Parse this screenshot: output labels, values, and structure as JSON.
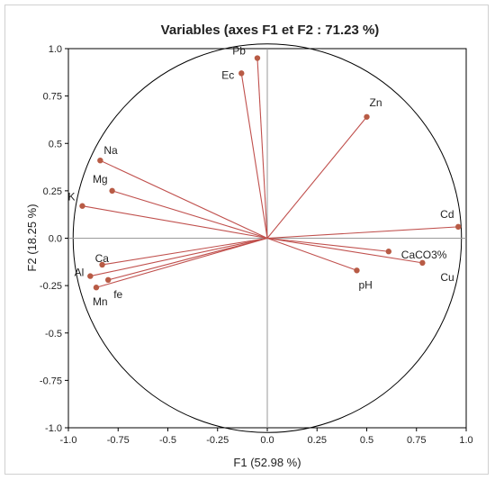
{
  "chart_data": {
    "type": "scatter",
    "subtype": "correlation-circle",
    "title": "Variables (axes F1 et F2 : 71.23 %)",
    "xlabel": "F1 (52.98 %)",
    "ylabel": "F2 (18.25 %)",
    "xlim": [
      -1.0,
      1.0
    ],
    "ylim": [
      -1.0,
      1.0
    ],
    "x_ticks": [
      "-1.0",
      "-0.75",
      "-0.5",
      "-0.25",
      "0.0",
      "0.25",
      "0.5",
      "0.75",
      "1.0"
    ],
    "y_ticks": [
      "1.0",
      "0.75",
      "0.5",
      "0.25",
      "0.0",
      "-0.25",
      "-0.5",
      "-0.75",
      "-1.0"
    ],
    "grid": false,
    "unit_circle": true,
    "colors": {
      "vector": "#c0504d",
      "point": "#b85b45",
      "axis": "#000000"
    },
    "points": [
      {
        "label": "Pb",
        "x": -0.05,
        "y": 0.95
      },
      {
        "label": "Ec",
        "x": -0.13,
        "y": 0.87
      },
      {
        "label": "Zn",
        "x": 0.5,
        "y": 0.64
      },
      {
        "label": "Na",
        "x": -0.84,
        "y": 0.41
      },
      {
        "label": "Mg",
        "x": -0.78,
        "y": 0.25
      },
      {
        "label": "K",
        "x": -0.93,
        "y": 0.17
      },
      {
        "label": "Cd",
        "x": 0.96,
        "y": 0.06
      },
      {
        "label": "CaCO3%",
        "x": 0.61,
        "y": -0.07
      },
      {
        "label": "Cu",
        "x": 0.78,
        "y": -0.13
      },
      {
        "label": "pH",
        "x": 0.45,
        "y": -0.17
      },
      {
        "label": "Ca",
        "x": -0.83,
        "y": -0.14
      },
      {
        "label": "Al",
        "x": -0.89,
        "y": -0.2
      },
      {
        "label": "fe",
        "x": -0.8,
        "y": -0.22
      },
      {
        "label": "Mn",
        "x": -0.86,
        "y": -0.26
      }
    ]
  }
}
